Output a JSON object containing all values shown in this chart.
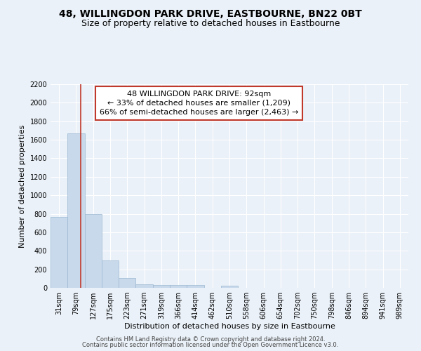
{
  "title": "48, WILLINGDON PARK DRIVE, EASTBOURNE, BN22 0BT",
  "subtitle": "Size of property relative to detached houses in Eastbourne",
  "xlabel": "Distribution of detached houses by size in Eastbourne",
  "ylabel": "Number of detached properties",
  "categories": [
    "31sqm",
    "79sqm",
    "127sqm",
    "175sqm",
    "223sqm",
    "271sqm",
    "319sqm",
    "366sqm",
    "414sqm",
    "462sqm",
    "510sqm",
    "558sqm",
    "606sqm",
    "654sqm",
    "702sqm",
    "750sqm",
    "798sqm",
    "846sqm",
    "894sqm",
    "941sqm",
    "989sqm"
  ],
  "values": [
    770,
    1670,
    795,
    295,
    110,
    38,
    30,
    30,
    30,
    0,
    20,
    0,
    0,
    0,
    0,
    0,
    0,
    0,
    0,
    0,
    0
  ],
  "bar_color": "#c9d9ec",
  "bar_edge_color": "#9ab8d0",
  "vline_color": "#c0392b",
  "vline_x": 1.28,
  "annotation_box_edge": "#c0392b",
  "annotation_title": "48 WILLINGDON PARK DRIVE: 92sqm",
  "annotation_line1": "← 33% of detached houses are smaller (1,209)",
  "annotation_line2": "66% of semi-detached houses are larger (2,463) →",
  "ylim": [
    0,
    2200
  ],
  "yticks": [
    0,
    200,
    400,
    600,
    800,
    1000,
    1200,
    1400,
    1600,
    1800,
    2000,
    2200
  ],
  "footer1": "Contains HM Land Registry data © Crown copyright and database right 2024.",
  "footer2": "Contains public sector information licensed under the Open Government Licence v3.0.",
  "background_color": "#eaf1f8",
  "plot_bg_color": "#eaf1f8",
  "grid_color": "#ffffff",
  "title_fontsize": 10,
  "subtitle_fontsize": 9,
  "axis_label_fontsize": 8,
  "tick_fontsize": 7,
  "annotation_fontsize": 8,
  "footer_fontsize": 6
}
